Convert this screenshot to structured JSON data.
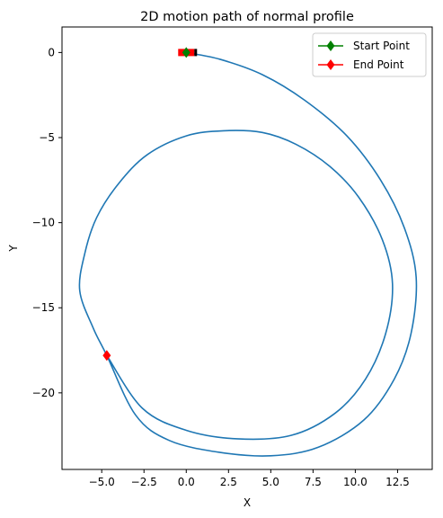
{
  "chart_data": {
    "type": "line",
    "title": "2D motion path of normal profile",
    "xlabel": "X",
    "ylabel": "Y",
    "xlim": [
      -7.35,
      14.55
    ],
    "ylim": [
      -24.5,
      1.5
    ],
    "xticks": [
      -5.0,
      -2.5,
      0.0,
      2.5,
      5.0,
      7.5,
      10.0,
      12.5
    ],
    "xtick_labels": [
      "−5.0",
      "−2.5",
      "0.0",
      "2.5",
      "5.0",
      "7.5",
      "10.0",
      "12.5"
    ],
    "yticks": [
      0,
      -5,
      -10,
      -15,
      -20
    ],
    "ytick_labels": [
      "0",
      "−5",
      "−10",
      "−15",
      "−20"
    ],
    "grid": false,
    "legend_position": "top-right",
    "colors": {
      "path": "#1f77b4",
      "start": "#008000",
      "end": "#ff0000",
      "vehicle": "#ff0000"
    },
    "series": [
      {
        "name": "path",
        "points": [
          [
            0.0,
            0.0
          ],
          [
            2.0,
            -0.4
          ],
          [
            4.5,
            -1.3
          ],
          [
            7.0,
            -2.8
          ],
          [
            9.5,
            -4.9
          ],
          [
            11.5,
            -7.5
          ],
          [
            12.9,
            -10.3
          ],
          [
            13.6,
            -13.2
          ],
          [
            13.3,
            -16.5
          ],
          [
            12.3,
            -19.2
          ],
          [
            10.5,
            -21.6
          ],
          [
            7.8,
            -23.2
          ],
          [
            5.0,
            -23.7
          ],
          [
            2.0,
            -23.5
          ],
          [
            -1.0,
            -22.8
          ],
          [
            -3.0,
            -21.3
          ],
          [
            -4.7,
            -17.8
          ],
          [
            -5.5,
            -16.2
          ],
          [
            -6.3,
            -14.0
          ],
          [
            -6.0,
            -11.8
          ],
          [
            -5.3,
            -9.7
          ],
          [
            -4.0,
            -7.7
          ],
          [
            -2.3,
            -6.0
          ],
          [
            0.0,
            -4.9
          ],
          [
            2.2,
            -4.6
          ],
          [
            4.5,
            -4.7
          ],
          [
            6.5,
            -5.4
          ],
          [
            8.5,
            -6.7
          ],
          [
            10.2,
            -8.5
          ],
          [
            11.6,
            -11.0
          ],
          [
            12.2,
            -13.6
          ],
          [
            11.8,
            -16.5
          ],
          [
            10.6,
            -19.2
          ],
          [
            8.8,
            -21.2
          ],
          [
            6.2,
            -22.5
          ],
          [
            3.0,
            -22.7
          ],
          [
            0.0,
            -22.2
          ],
          [
            -2.6,
            -20.9
          ],
          [
            -4.7,
            -17.8
          ]
        ]
      },
      {
        "name": "Start Point",
        "marker": "diamond",
        "x": [
          0.0
        ],
        "y": [
          0.0
        ]
      },
      {
        "name": "End Point",
        "marker": "diamond",
        "x": [
          -4.7
        ],
        "y": [
          -17.8
        ]
      }
    ],
    "legend": [
      "Start Point",
      "End Point"
    ]
  }
}
